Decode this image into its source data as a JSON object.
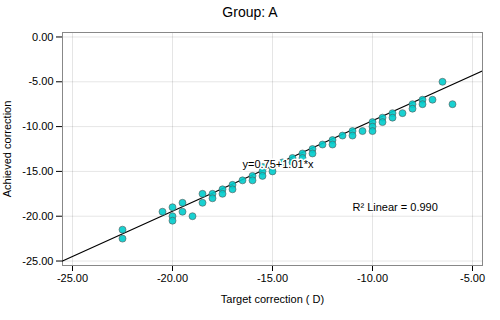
{
  "chart_data": {
    "type": "scatter",
    "title": "Group: A",
    "xlabel": "Target correction ( D)",
    "ylabel": "Achieved correction",
    "xlim": [
      -25.5,
      -4.5
    ],
    "ylim": [
      -25.5,
      0.5
    ],
    "xticks": [
      {
        "value": -25,
        "label": "-25.00"
      },
      {
        "value": -20,
        "label": "-20.00"
      },
      {
        "value": -15,
        "label": "-15.00"
      },
      {
        "value": -10,
        "label": "-10.00"
      },
      {
        "value": -5,
        "label": "-5.00"
      }
    ],
    "yticks": [
      {
        "value": -25,
        "label": "-25.00"
      },
      {
        "value": -20,
        "label": "-20.00"
      },
      {
        "value": -15,
        "label": "-15.00"
      },
      {
        "value": -10,
        "label": "-10.00"
      },
      {
        "value": -5,
        "label": "-5.00"
      },
      {
        "value": 0,
        "label": "0.00"
      }
    ],
    "grid": true,
    "series": [
      {
        "type": "scatter",
        "color": "#00CCCC",
        "marker": "circle",
        "x": [
          -22.5,
          -22.5,
          -20.5,
          -20.0,
          -20.0,
          -20.0,
          -19.5,
          -19.5,
          -19.0,
          -18.5,
          -18.5,
          -18.0,
          -18.0,
          -17.5,
          -17.5,
          -17.0,
          -17.0,
          -16.5,
          -16.0,
          -16.0,
          -15.5,
          -15.5,
          -15.5,
          -15.0,
          -15.0,
          -14.5,
          -14.0,
          -14.0,
          -13.5,
          -13.5,
          -13.0,
          -13.0,
          -12.5,
          -12.0,
          -12.0,
          -11.5,
          -11.0,
          -11.0,
          -10.5,
          -10.0,
          -10.0,
          -10.0,
          -9.5,
          -9.5,
          -9.0,
          -9.0,
          -8.5,
          -8.0,
          -8.0,
          -7.5,
          -7.5,
          -7.0,
          -6.5,
          -6.0
        ],
        "values": [
          -21.5,
          -22.5,
          -19.5,
          -20.0,
          -20.5,
          -19.0,
          -19.5,
          -18.5,
          -20.0,
          -17.5,
          -18.5,
          -17.5,
          -18.0,
          -17.0,
          -17.5,
          -16.5,
          -17.0,
          -16.0,
          -15.5,
          -16.0,
          -14.5,
          -15.0,
          -15.5,
          -14.5,
          -15.0,
          -14.0,
          -13.5,
          -14.0,
          -13.0,
          -13.5,
          -12.5,
          -13.0,
          -12.0,
          -11.5,
          -12.0,
          -11.0,
          -10.5,
          -11.0,
          -10.5,
          -9.5,
          -10.0,
          -10.5,
          -9.0,
          -9.5,
          -8.5,
          -9.0,
          -8.5,
          -7.5,
          -8.0,
          -7.0,
          -7.5,
          -7.0,
          -5.0,
          -7.5
        ]
      },
      {
        "type": "line",
        "color": "#000000",
        "line_style": "solid",
        "x": [
          -25.5,
          -4.5
        ],
        "values": [
          -25.005,
          -3.795
        ]
      }
    ],
    "annotations": [
      {
        "text": "y=0.75+1.01*x",
        "x": -16.5,
        "y": -14.2
      },
      {
        "text": "R² Linear = 0.990",
        "x": -11.0,
        "y": -19.0
      }
    ]
  }
}
